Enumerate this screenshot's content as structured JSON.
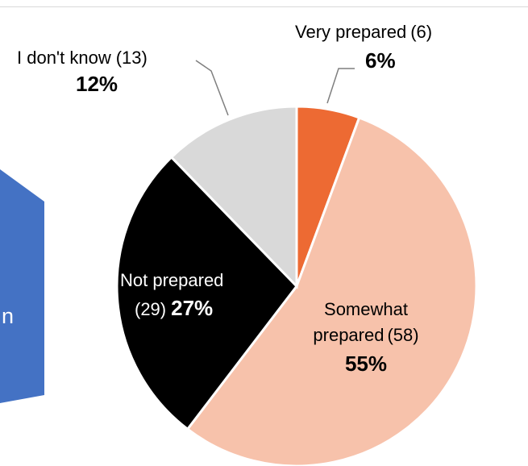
{
  "side_panel": {
    "text_fragment": "n",
    "color": "#4472c4"
  },
  "chart_data": {
    "type": "pie",
    "title": "",
    "slices": [
      {
        "label": "Very prepared",
        "count": "(6)",
        "percent_label": "6%",
        "value": 6,
        "color": "#ed6a33"
      },
      {
        "label": "Somewhat prepared",
        "count": "(58)",
        "percent_label": "55%",
        "value": 58,
        "color": "#f7c2ab"
      },
      {
        "label": "Not prepared",
        "count": "(29)",
        "percent_label": "27%",
        "value": 29,
        "color": "#000000"
      },
      {
        "label": "I don't know",
        "count": "(13)",
        "percent_label": "12%",
        "value": 13,
        "color": "#d9d9d9"
      }
    ]
  }
}
